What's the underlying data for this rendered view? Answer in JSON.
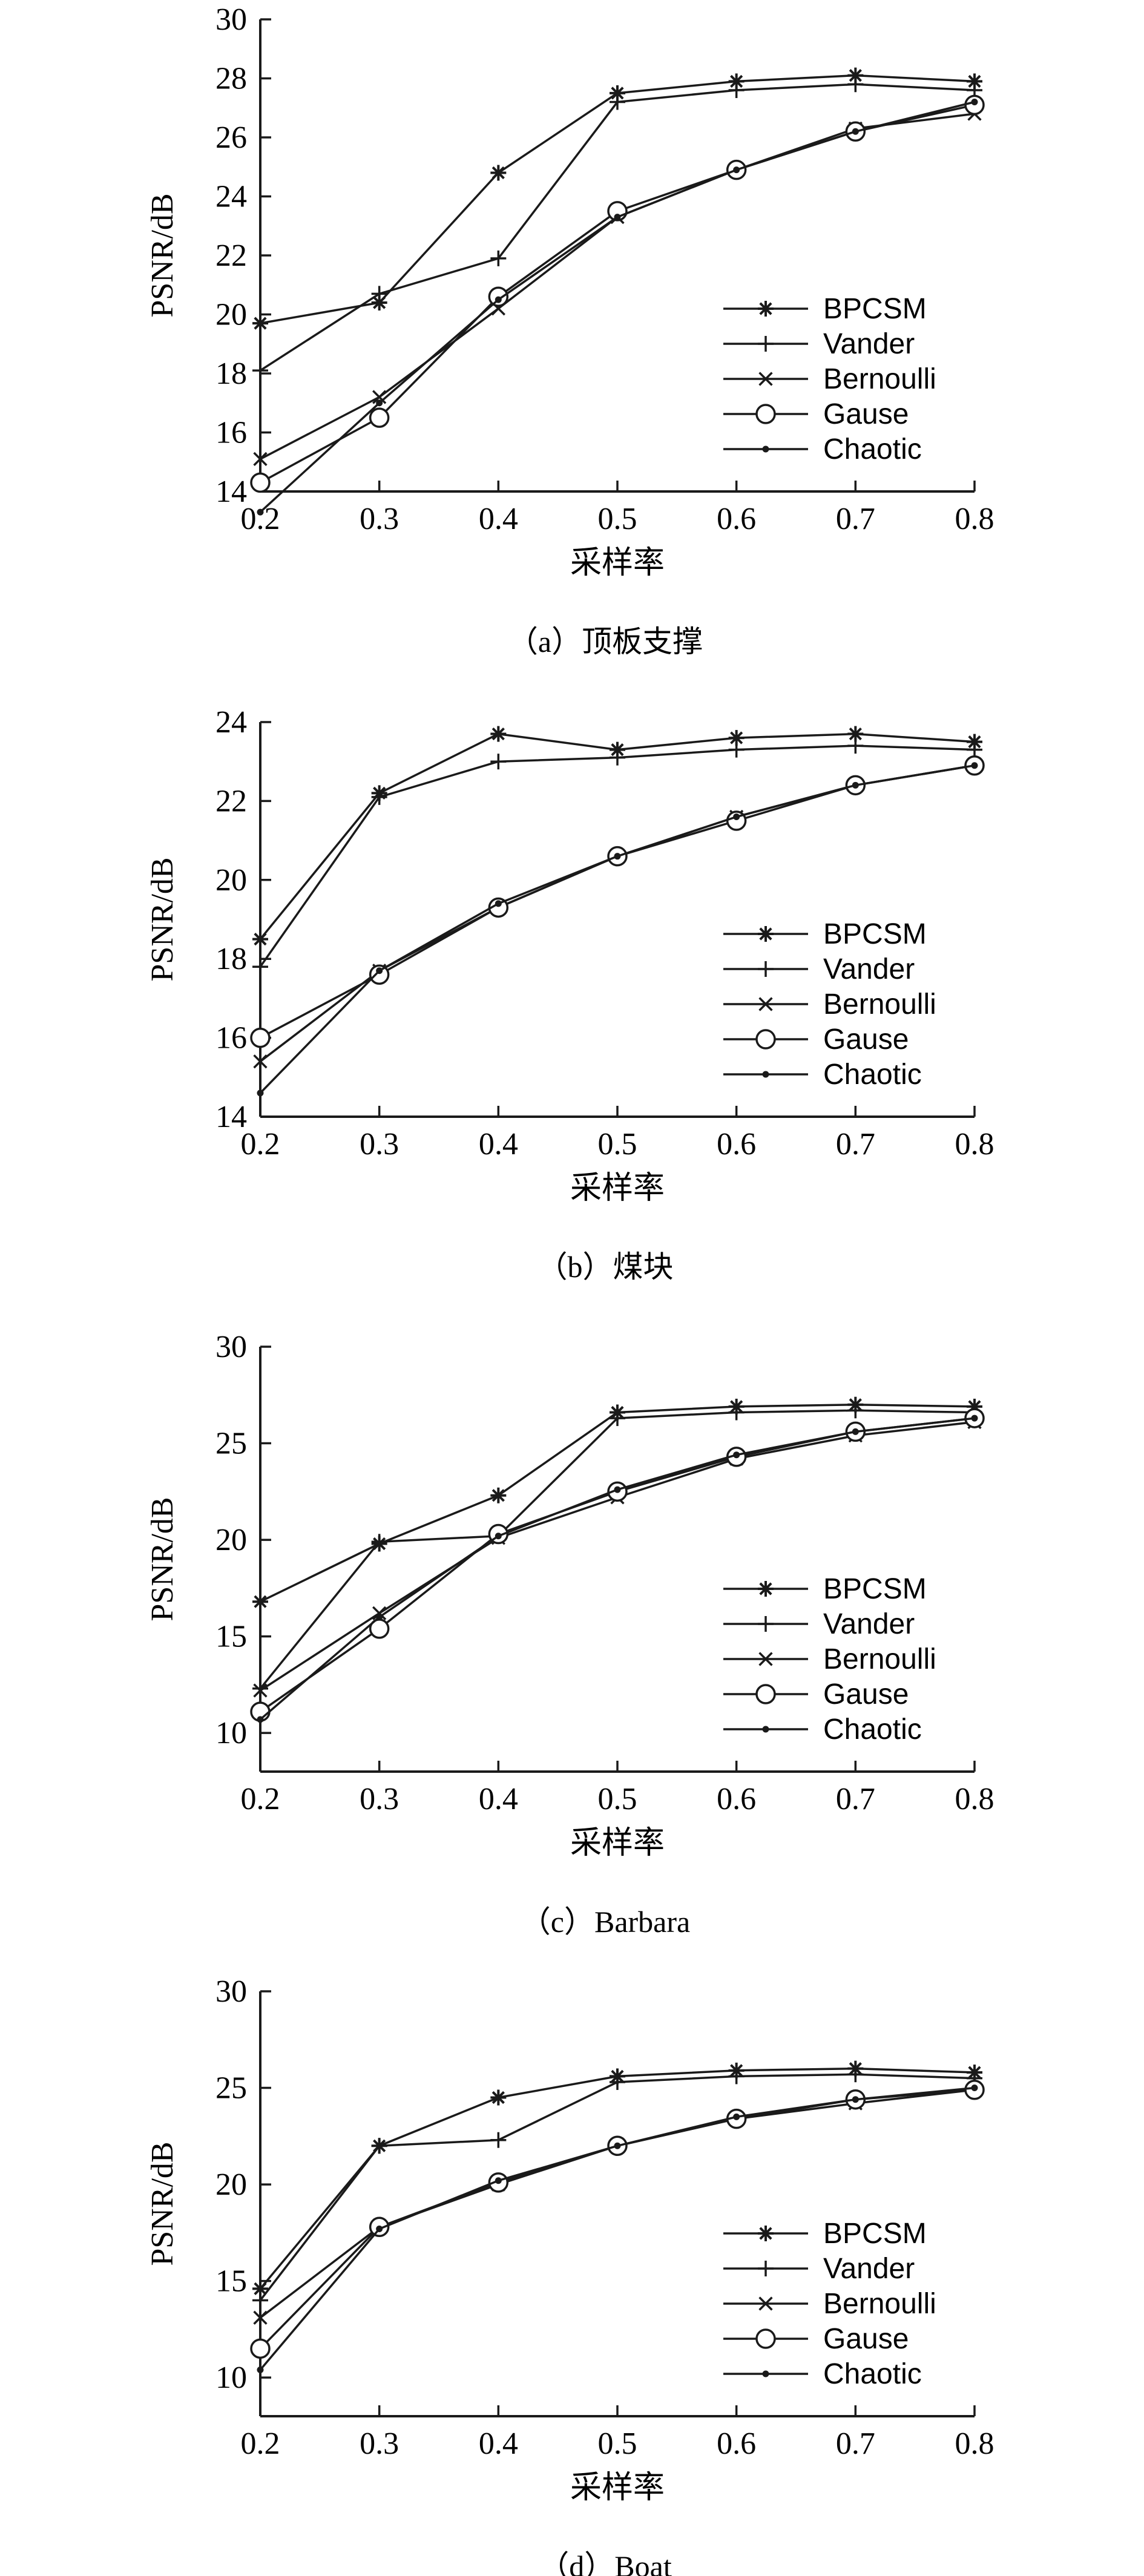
{
  "chart_data": [
    {
      "type": "line",
      "caption": "（a）顶板支撑",
      "xlabel": "采样率",
      "ylabel": "PSNR/dB",
      "x": [
        0.2,
        0.3,
        0.4,
        0.5,
        0.6,
        0.7,
        0.8
      ],
      "xticks": [
        "0.2",
        "0.3",
        "0.4",
        "0.5",
        "0.6",
        "0.7",
        "0.8"
      ],
      "ylim": [
        14,
        30
      ],
      "yticks": [
        "14",
        "16",
        "18",
        "20",
        "22",
        "24",
        "26",
        "28",
        "30"
      ],
      "legend_position": "lower-right",
      "series": [
        {
          "name": "BPCSM",
          "marker": "star",
          "values": [
            19.7,
            20.4,
            24.8,
            27.5,
            27.9,
            28.1,
            27.9
          ]
        },
        {
          "name": "Vander",
          "marker": "plus",
          "values": [
            18.1,
            20.7,
            21.9,
            27.2,
            27.6,
            27.8,
            27.6
          ]
        },
        {
          "name": "Bernoulli",
          "marker": "x",
          "values": [
            15.1,
            17.2,
            20.2,
            23.3,
            24.9,
            26.3,
            26.8
          ]
        },
        {
          "name": "Gause",
          "marker": "circle",
          "values": [
            14.3,
            16.5,
            20.6,
            23.5,
            24.9,
            26.2,
            27.1
          ]
        },
        {
          "name": "Chaotic",
          "marker": "dot",
          "values": [
            13.3,
            17.0,
            20.5,
            23.3,
            24.9,
            26.2,
            27.2
          ]
        }
      ]
    },
    {
      "type": "line",
      "caption": "（b）煤块",
      "xlabel": "采样率",
      "ylabel": "PSNR/dB",
      "x": [
        0.2,
        0.3,
        0.4,
        0.5,
        0.6,
        0.7,
        0.8
      ],
      "xticks": [
        "0.2",
        "0.3",
        "0.4",
        "0.5",
        "0.6",
        "0.7",
        "0.8"
      ],
      "ylim": [
        14,
        24
      ],
      "yticks": [
        "14",
        "16",
        "18",
        "20",
        "22",
        "24"
      ],
      "legend_position": "lower-right",
      "series": [
        {
          "name": "BPCSM",
          "marker": "star",
          "values": [
            18.5,
            22.2,
            23.7,
            23.3,
            23.6,
            23.7,
            23.5
          ]
        },
        {
          "name": "Vander",
          "marker": "plus",
          "values": [
            17.8,
            22.1,
            23.0,
            23.1,
            23.3,
            23.4,
            23.3
          ]
        },
        {
          "name": "Bernoulli",
          "marker": "x",
          "values": [
            15.4,
            17.7,
            19.3,
            20.6,
            21.6,
            22.4,
            22.9
          ]
        },
        {
          "name": "Gause",
          "marker": "circle",
          "values": [
            16.0,
            17.6,
            19.3,
            20.6,
            21.5,
            22.4,
            22.9
          ]
        },
        {
          "name": "Chaotic",
          "marker": "dot",
          "values": [
            14.6,
            17.7,
            19.4,
            20.6,
            21.6,
            22.4,
            22.9
          ]
        }
      ]
    },
    {
      "type": "line",
      "caption": "（c）Barbara",
      "xlabel": "采样率",
      "ylabel": "PSNR/dB",
      "x": [
        0.2,
        0.3,
        0.4,
        0.5,
        0.6,
        0.7,
        0.8
      ],
      "xticks": [
        "0.2",
        "0.3",
        "0.4",
        "0.5",
        "0.6",
        "0.7",
        "0.8"
      ],
      "ylim": [
        8,
        30
      ],
      "yticks": [
        "10",
        "15",
        "20",
        "25",
        "30"
      ],
      "legend_position": "lower-right",
      "series": [
        {
          "name": "BPCSM",
          "marker": "star",
          "values": [
            16.8,
            19.8,
            22.3,
            26.6,
            26.9,
            27.0,
            26.9
          ]
        },
        {
          "name": "Vander",
          "marker": "plus",
          "values": [
            12.3,
            19.9,
            20.2,
            26.3,
            26.6,
            26.7,
            26.6
          ]
        },
        {
          "name": "Bernoulli",
          "marker": "x",
          "values": [
            12.2,
            16.2,
            20.1,
            22.2,
            24.2,
            25.4,
            26.1
          ]
        },
        {
          "name": "Gause",
          "marker": "circle",
          "values": [
            11.1,
            15.4,
            20.3,
            22.5,
            24.3,
            25.6,
            26.3
          ]
        },
        {
          "name": "Chaotic",
          "marker": "dot",
          "values": [
            10.7,
            16.0,
            20.2,
            22.6,
            24.4,
            25.6,
            26.3
          ]
        }
      ]
    },
    {
      "type": "line",
      "caption": "（d）Boat",
      "xlabel": "采样率",
      "ylabel": "PSNR/dB",
      "x": [
        0.2,
        0.3,
        0.4,
        0.5,
        0.6,
        0.7,
        0.8
      ],
      "xticks": [
        "0.2",
        "0.3",
        "0.4",
        "0.5",
        "0.6",
        "0.7",
        "0.8"
      ],
      "ylim": [
        8,
        30
      ],
      "yticks": [
        "10",
        "15",
        "20",
        "25",
        "30"
      ],
      "legend_position": "lower-right",
      "series": [
        {
          "name": "BPCSM",
          "marker": "star",
          "values": [
            14.6,
            22.0,
            24.5,
            25.6,
            25.9,
            26.0,
            25.8
          ]
        },
        {
          "name": "Vander",
          "marker": "plus",
          "values": [
            14.0,
            22.0,
            22.3,
            25.3,
            25.6,
            25.7,
            25.5
          ]
        },
        {
          "name": "Bernoulli",
          "marker": "x",
          "values": [
            13.1,
            17.8,
            20.0,
            22.0,
            23.4,
            24.2,
            24.9
          ]
        },
        {
          "name": "Gause",
          "marker": "circle",
          "values": [
            11.5,
            17.8,
            20.1,
            22.0,
            23.4,
            24.4,
            24.9
          ]
        },
        {
          "name": "Chaotic",
          "marker": "dot",
          "values": [
            10.4,
            17.7,
            20.2,
            22.0,
            23.5,
            24.4,
            25.0
          ]
        }
      ]
    }
  ]
}
